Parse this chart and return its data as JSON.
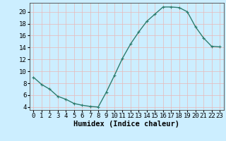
{
  "x": [
    0,
    1,
    2,
    3,
    4,
    5,
    6,
    7,
    8,
    9,
    10,
    11,
    12,
    13,
    14,
    15,
    16,
    17,
    18,
    19,
    20,
    21,
    22,
    23
  ],
  "y": [
    9,
    7.8,
    7,
    5.8,
    5.3,
    4.6,
    4.3,
    4.1,
    4.0,
    6.5,
    9.3,
    12.2,
    14.6,
    16.6,
    18.4,
    19.6,
    20.8,
    20.8,
    20.7,
    20.0,
    17.5,
    15.6,
    14.2,
    14.1
  ],
  "line_color": "#2e7d6e",
  "marker": "+",
  "marker_size": 3,
  "xlabel": "Humidex (Indice chaleur)",
  "xlim": [
    -0.5,
    23.5
  ],
  "ylim": [
    3.5,
    21.5
  ],
  "yticks": [
    4,
    6,
    8,
    10,
    12,
    14,
    16,
    18,
    20
  ],
  "xticks": [
    0,
    1,
    2,
    3,
    4,
    5,
    6,
    7,
    8,
    9,
    10,
    11,
    12,
    13,
    14,
    15,
    16,
    17,
    18,
    19,
    20,
    21,
    22,
    23
  ],
  "bg_color": "#cceeff",
  "grid_color": "#e8b8b8",
  "linewidth": 1.0,
  "xlabel_fontsize": 7.5,
  "tick_fontsize": 6.5
}
